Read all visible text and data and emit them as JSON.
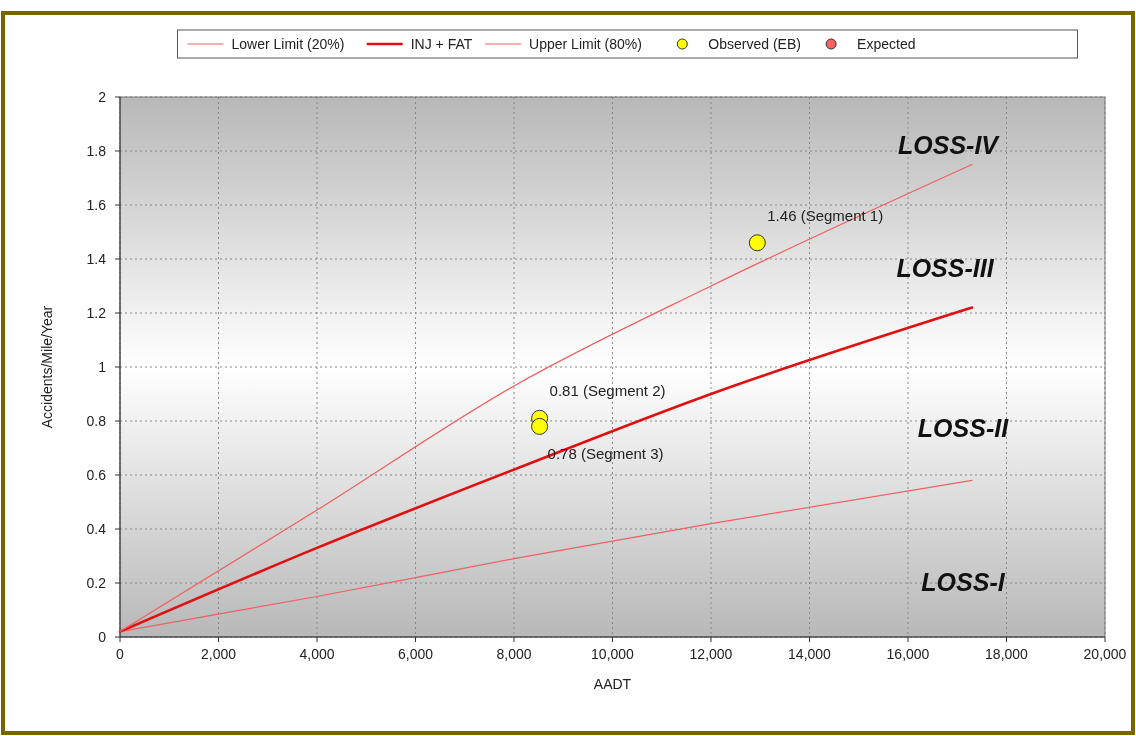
{
  "chart_data": {
    "type": "line",
    "xlabel": "AADT",
    "ylabel": "Accidents/Mile/Year",
    "xlim": [
      0,
      20000
    ],
    "xticks": [
      {
        "value": 0,
        "label": "0"
      },
      {
        "value": 2000,
        "label": "2,000"
      },
      {
        "value": 4000,
        "label": "4,000"
      },
      {
        "value": 6000,
        "label": "6,000"
      },
      {
        "value": 8000,
        "label": "8,000"
      },
      {
        "value": 10000,
        "label": "10,000"
      },
      {
        "value": 12000,
        "label": "12,000"
      },
      {
        "value": 14000,
        "label": "14,000"
      },
      {
        "value": 16000,
        "label": "16,000"
      },
      {
        "value": 18000,
        "label": "18,000"
      },
      {
        "value": 20000,
        "label": "20,000"
      }
    ],
    "ylim": [
      0,
      2
    ],
    "yticks": [
      0,
      0.2,
      0.4,
      0.6,
      0.8,
      1,
      1.2,
      1.4,
      1.6,
      1.8,
      2
    ],
    "grid": true,
    "legend": "top",
    "line_style": "solid",
    "series": [
      {
        "name": "Lower Limit (20%)",
        "color": "#f06060",
        "x": [
          0,
          4000,
          8000,
          12000,
          17300
        ],
        "values": [
          0.02,
          0.15,
          0.29,
          0.42,
          0.58
        ]
      },
      {
        "name": "INJ + FAT",
        "color": "#e01010",
        "x": [
          0,
          4000,
          8000,
          12000,
          17300
        ],
        "values": [
          0.02,
          0.33,
          0.62,
          0.9,
          1.22
        ]
      },
      {
        "name": "Upper Limit (80%)",
        "color": "#f06060",
        "x": [
          0,
          4000,
          8000,
          12000,
          17300
        ],
        "values": [
          0.02,
          0.47,
          0.93,
          1.3,
          1.75
        ]
      },
      {
        "name": "Observed (EB)",
        "type": "scatter",
        "marker": "circle",
        "color": "#ffff00",
        "x": [
          12940,
          8520,
          8520
        ],
        "values": [
          1.46,
          0.81,
          0.78
        ],
        "value_labels": [
          "1.46 (Segment 1)",
          "0.81 (Segment 2)",
          "0.78 (Segment 3)"
        ]
      },
      {
        "name": "Expected",
        "type": "scatter",
        "marker": "circle",
        "color": "#ff6060"
      }
    ],
    "annotations": [
      "LOSS-IV",
      "LOSS-III",
      "LOSS-II",
      "LOSS-I"
    ]
  }
}
